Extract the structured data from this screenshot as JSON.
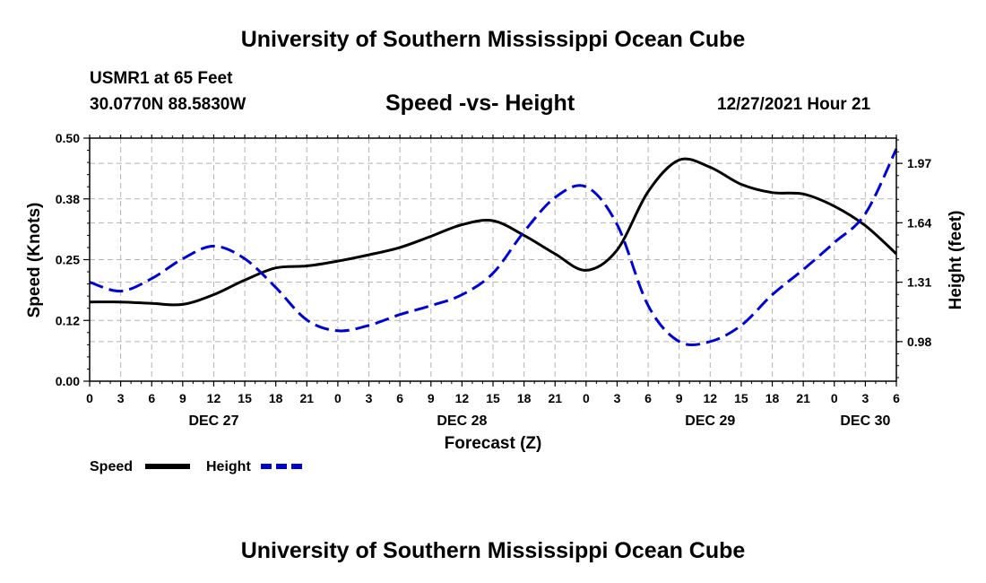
{
  "header": {
    "title": "University of Southern Mississippi Ocean Cube",
    "station": "USMR1 at 65 Feet",
    "coords": "30.0770N  88.5830W",
    "subtitle": "Speed -vs- Height",
    "timestamp": "12/27/2021 Hour 21"
  },
  "footer": {
    "title": "University of Southern Mississippi Ocean Cube"
  },
  "chart_data": {
    "type": "line",
    "title": "Speed -vs- Height",
    "xlabel": "Forecast (Z)",
    "ylabel": "Speed (Knots)",
    "y2label": "Height (feet)",
    "xlim": [
      0,
      78
    ],
    "ylim": [
      0,
      0.5
    ],
    "y2lim": [
      0.76,
      2.11
    ],
    "x_tick_labels": [
      "0",
      "3",
      "6",
      "9",
      "12",
      "15",
      "18",
      "21",
      "0",
      "3",
      "6",
      "9",
      "12",
      "15",
      "18",
      "21",
      "0",
      "3",
      "6",
      "9",
      "12",
      "15",
      "18",
      "21",
      "0",
      "3",
      "6"
    ],
    "y_tick_labels": [
      "0.00",
      "0.12",
      "0.25",
      "0.38",
      "0.50"
    ],
    "y_tick_values": [
      0,
      0.125,
      0.25,
      0.375,
      0.5
    ],
    "y2_tick_labels": [
      "0.98",
      "1.31",
      "1.64",
      "1.97"
    ],
    "y2_tick_values": [
      0.98,
      1.31,
      1.64,
      1.97
    ],
    "day_labels": [
      {
        "label": "DEC 27",
        "x": 12
      },
      {
        "label": "DEC 28",
        "x": 36
      },
      {
        "label": "DEC 29",
        "x": 60
      },
      {
        "label": "DEC 30",
        "x": 75
      }
    ],
    "grid": true,
    "series": [
      {
        "name": "Speed",
        "axis": "left",
        "color": "#000000",
        "style": "solid",
        "x": [
          0,
          3,
          6,
          9,
          12,
          15,
          18,
          21,
          24,
          27,
          30,
          33,
          36,
          39,
          42,
          45,
          48,
          51,
          54,
          57,
          60,
          63,
          66,
          69,
          72,
          75,
          78
        ],
        "values": [
          0.163,
          0.163,
          0.16,
          0.158,
          0.178,
          0.208,
          0.233,
          0.237,
          0.247,
          0.26,
          0.275,
          0.298,
          0.322,
          0.33,
          0.3,
          0.262,
          0.228,
          0.27,
          0.39,
          0.455,
          0.44,
          0.405,
          0.388,
          0.385,
          0.36,
          0.32,
          0.262
        ]
      },
      {
        "name": "Height",
        "axis": "right",
        "color": "#0000cc",
        "style": "dashed",
        "x": [
          0,
          3,
          6,
          9,
          12,
          15,
          18,
          21,
          24,
          27,
          30,
          33,
          36,
          39,
          42,
          45,
          48,
          51,
          54,
          57,
          60,
          63,
          66,
          69,
          72,
          75,
          78
        ],
        "values": [
          1.31,
          1.26,
          1.33,
          1.44,
          1.51,
          1.44,
          1.28,
          1.1,
          1.04,
          1.07,
          1.13,
          1.18,
          1.24,
          1.36,
          1.59,
          1.78,
          1.84,
          1.63,
          1.18,
          0.98,
          0.98,
          1.07,
          1.24,
          1.38,
          1.53,
          1.69,
          2.05
        ]
      }
    ]
  },
  "legend": {
    "items": [
      {
        "label": "Speed",
        "color": "#000000",
        "style": "solid"
      },
      {
        "label": "Height",
        "color": "#0000cc",
        "style": "dashed"
      }
    ]
  }
}
